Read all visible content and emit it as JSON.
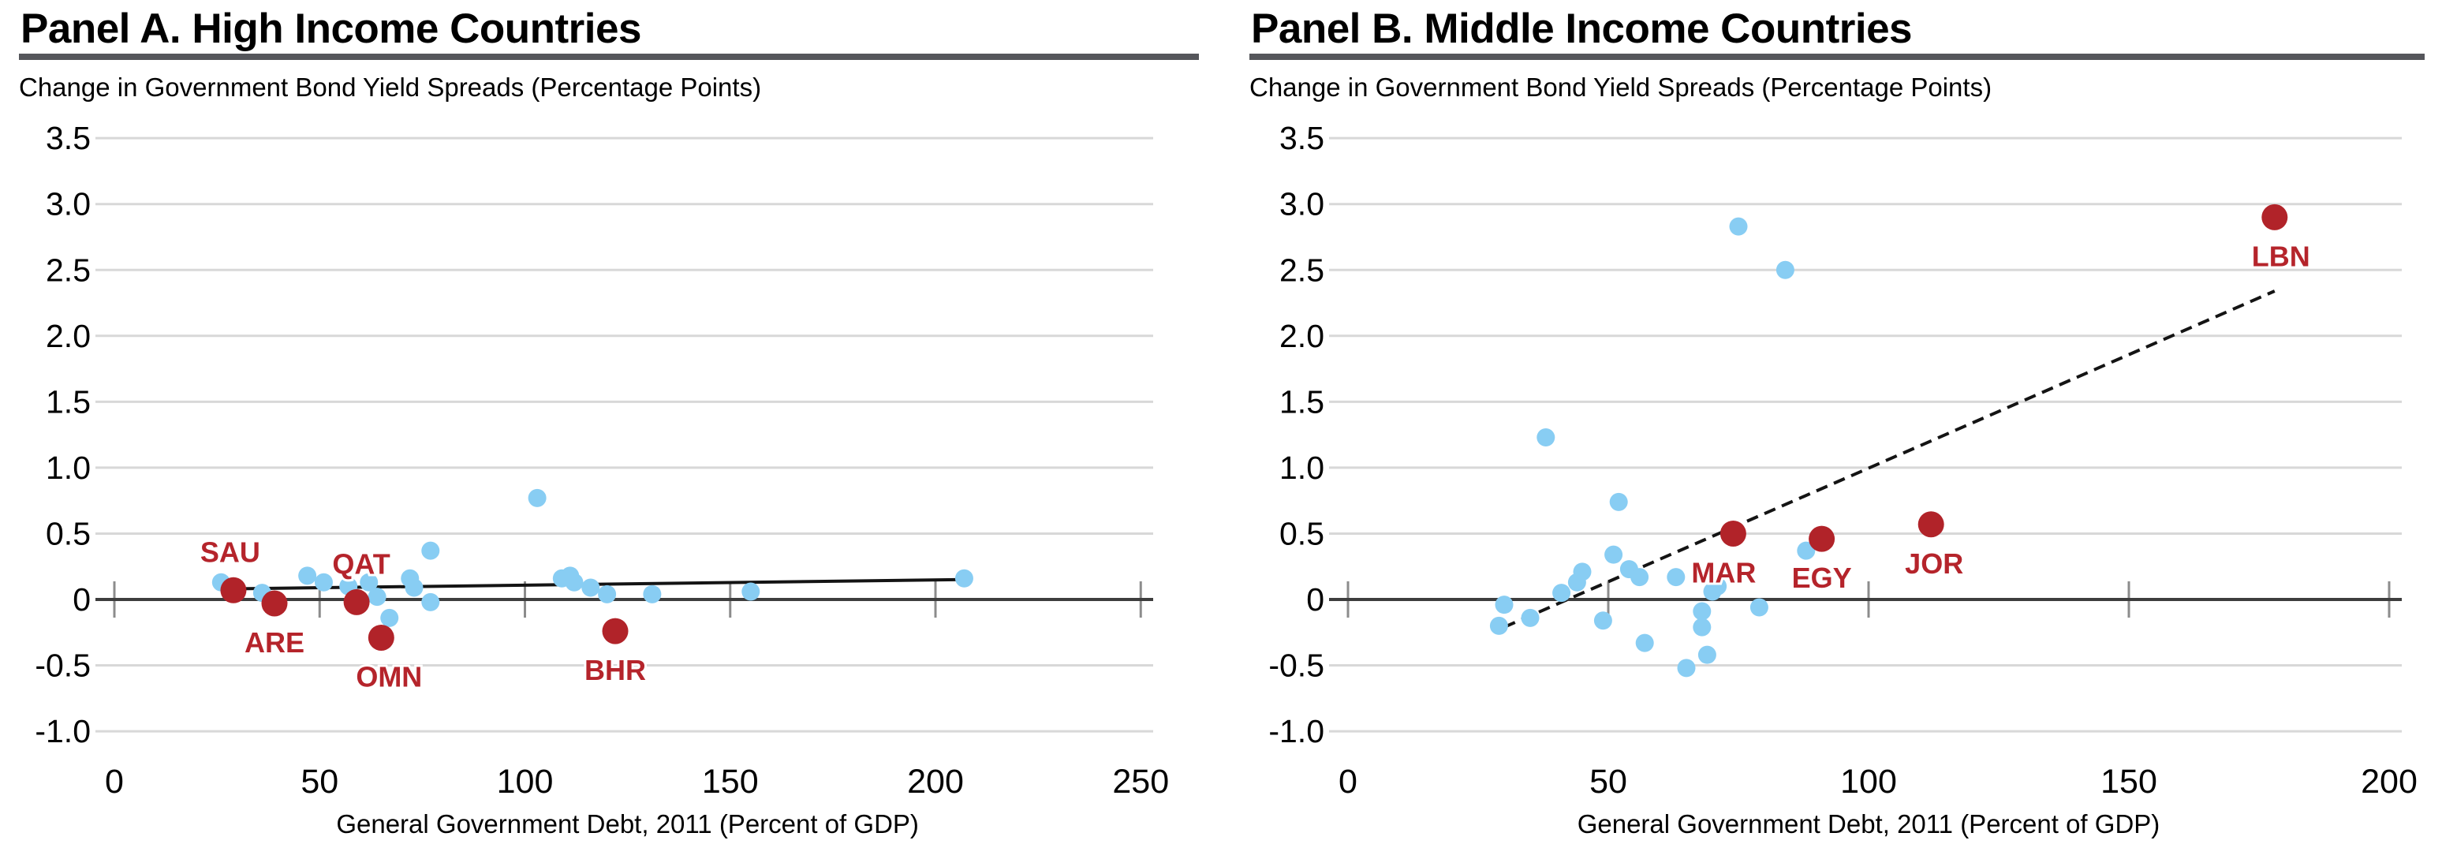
{
  "chart_data": [
    {
      "type": "scatter",
      "panel_id": "A",
      "title": "Panel A. High Income Countries",
      "subtitle": "Change in Government Bond Yield Spreads (Percentage Points)",
      "xlabel": "General Government Debt, 2011 (Percent of GDP)",
      "xlim": [
        0,
        250
      ],
      "ylim": [
        -1.0,
        3.5
      ],
      "xticks": [
        0,
        50,
        100,
        150,
        200,
        250
      ],
      "ytick_labels": [
        "3.5",
        "3.0",
        "2.5",
        "2.0",
        "1.5",
        "1.0",
        "0.5",
        "0",
        "-0.5",
        "-1.0"
      ],
      "ytick_values": [
        3.5,
        3.0,
        2.5,
        2.0,
        1.5,
        1.0,
        0.5,
        0,
        -0.5,
        -1.0
      ],
      "grid": true,
      "legend": "none",
      "series": [
        {
          "name": "other-countries",
          "color": "#88cdf3",
          "points": [
            [
              26,
              0.13
            ],
            [
              36,
              0.05
            ],
            [
              47,
              0.18
            ],
            [
              51,
              0.13
            ],
            [
              57,
              0.1
            ],
            [
              62,
              0.13
            ],
            [
              64,
              0.02
            ],
            [
              67,
              -0.14
            ],
            [
              72,
              0.16
            ],
            [
              73,
              0.09
            ],
            [
              77,
              0.37
            ],
            [
              77,
              -0.02
            ],
            [
              103,
              0.77
            ],
            [
              109,
              0.16
            ],
            [
              111,
              0.18
            ],
            [
              112,
              0.13
            ],
            [
              116,
              0.09
            ],
            [
              120,
              0.04
            ],
            [
              131,
              0.04
            ],
            [
              155,
              0.06
            ],
            [
              207,
              0.16
            ]
          ]
        },
        {
          "name": "mena-highlighted",
          "color": "#b12329",
          "labeled_points": [
            {
              "label": "SAU",
              "x": 29,
              "y": 0.07,
              "placement": "above",
              "dx": -4
            },
            {
              "label": "ARE",
              "x": 39,
              "y": -0.03,
              "placement": "below",
              "dx": 0
            },
            {
              "label": "QAT",
              "x": 59,
              "y": -0.02,
              "placement": "above",
              "dx": 6
            },
            {
              "label": "OMN",
              "x": 65,
              "y": -0.29,
              "placement": "below",
              "dx": 10
            },
            {
              "label": "BHR",
              "x": 122,
              "y": -0.24,
              "placement": "below",
              "dx": 0
            }
          ]
        }
      ],
      "trend_line": {
        "x1": 27,
        "y1": 0.08,
        "x2": 205,
        "y2": 0.15,
        "style": "solid"
      }
    },
    {
      "type": "scatter",
      "panel_id": "B",
      "title": "Panel B. Middle Income Countries",
      "subtitle": "Change in Government Bond Yield Spreads (Percentage Points)",
      "xlabel": "General Government Debt, 2011 (Percent of GDP)",
      "xlim": [
        0,
        200
      ],
      "ylim": [
        -1.0,
        3.5
      ],
      "xticks": [
        0,
        50,
        100,
        150,
        200
      ],
      "ytick_labels": [
        "3.5",
        "3.0",
        "2.5",
        "2.0",
        "1.5",
        "1.0",
        "0.5",
        "0",
        "-0.5",
        "-1.0"
      ],
      "ytick_values": [
        3.5,
        3.0,
        2.5,
        2.0,
        1.5,
        1.0,
        0.5,
        0,
        -0.5,
        -1.0
      ],
      "grid": true,
      "legend": "none",
      "series": [
        {
          "name": "other-countries",
          "color": "#88cdf3",
          "points": [
            [
              29,
              -0.2
            ],
            [
              30,
              -0.04
            ],
            [
              35,
              -0.14
            ],
            [
              38,
              1.23
            ],
            [
              41,
              0.05
            ],
            [
              44,
              0.13
            ],
            [
              45,
              0.21
            ],
            [
              49,
              -0.16
            ],
            [
              51,
              0.34
            ],
            [
              52,
              0.74
            ],
            [
              54,
              0.23
            ],
            [
              56,
              0.17
            ],
            [
              57,
              -0.33
            ],
            [
              63,
              0.17
            ],
            [
              65,
              -0.52
            ],
            [
              68,
              -0.09
            ],
            [
              68,
              -0.21
            ],
            [
              69,
              -0.42
            ],
            [
              70,
              0.06
            ],
            [
              71,
              0.1
            ],
            [
              75,
              2.83
            ],
            [
              79,
              -0.06
            ],
            [
              84,
              2.5
            ],
            [
              88,
              0.37
            ]
          ]
        },
        {
          "name": "mena-highlighted",
          "color": "#b12329",
          "labeled_points": [
            {
              "label": "MAR",
              "x": 74,
              "y": 0.5,
              "placement": "below",
              "dx": -12
            },
            {
              "label": "EGY",
              "x": 91,
              "y": 0.46,
              "placement": "below",
              "dx": 0
            },
            {
              "label": "JOR",
              "x": 112,
              "y": 0.57,
              "placement": "below",
              "dx": 4
            },
            {
              "label": "LBN",
              "x": 178,
              "y": 2.9,
              "placement": "below",
              "dx": 8
            }
          ]
        }
      ],
      "trend_line": {
        "x1": 30,
        "y1": -0.21,
        "x2": 178,
        "y2": 2.34,
        "style": "dashed"
      }
    }
  ],
  "style": {
    "scatter_color": "#88cdf3",
    "highlight_color": "#b12329",
    "label_color": "#b5242b",
    "trend_color": "#141414",
    "gridline_color": "#d8d8d8",
    "zero_axis_color": "#3d3d3d",
    "tick_color": "#8c8c8c",
    "rule_color": "#55565b"
  }
}
